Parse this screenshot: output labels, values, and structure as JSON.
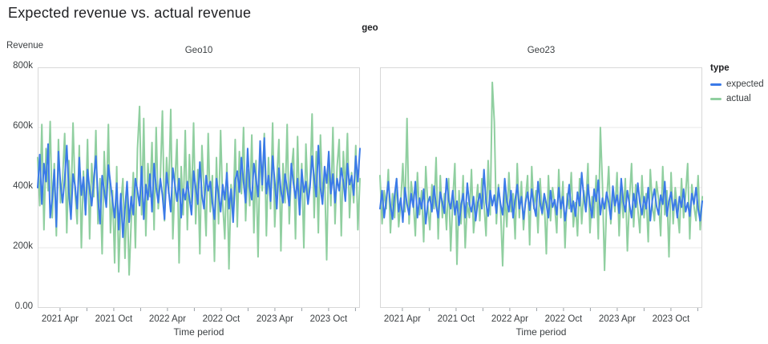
{
  "chart_data": {
    "type": "line",
    "title": "Expected revenue vs. actual revenue",
    "facet_field": "geo",
    "value_unit": "thousands (k)",
    "x_axis": {
      "title": "Time period",
      "span_months": 36,
      "ticks": [
        {
          "m": 2.5,
          "label": "2021 Apr"
        },
        {
          "m": 5.5,
          "label": ""
        },
        {
          "m": 8.5,
          "label": "2021 Oct"
        },
        {
          "m": 11.5,
          "label": ""
        },
        {
          "m": 14.5,
          "label": "2022 Apr"
        },
        {
          "m": 17.5,
          "label": ""
        },
        {
          "m": 20.5,
          "label": "2022 Oct"
        },
        {
          "m": 23.5,
          "label": ""
        },
        {
          "m": 26.5,
          "label": "2023 Apr"
        },
        {
          "m": 29.5,
          "label": ""
        },
        {
          "m": 32.5,
          "label": "2023 Oct"
        },
        {
          "m": 35.5,
          "label": ""
        }
      ]
    },
    "y_axis": {
      "title": "Revenue",
      "lim": [
        0,
        800
      ],
      "ticks": [
        {
          "value": 800,
          "label": "800k"
        },
        {
          "value": 600,
          "label": "600k"
        },
        {
          "value": 400,
          "label": "400k"
        },
        {
          "value": 200,
          "label": "200k"
        },
        {
          "value": 0,
          "label": "0.00"
        }
      ],
      "grid": true
    },
    "legend": {
      "title": "type",
      "position": "right",
      "items": [
        {
          "label": "expected",
          "color": "#3b7ae8"
        },
        {
          "label": "actual",
          "color": "#90cfa0"
        }
      ]
    },
    "style": {
      "border_color": "#d8d8d8",
      "grid_color": "#e7e7e7",
      "tick_color": "#9aa0a6",
      "axis_text_color": "#3c4043",
      "title_color": "#202124"
    },
    "facets": [
      {
        "title": "Geo10",
        "series": [
          {
            "name": "expected",
            "color": "#3b7ae8",
            "values": [
              400,
              510,
              345,
              480,
              420,
              545,
              300,
              365,
              460,
              270,
              520,
              410,
              350,
              430,
              540,
              385,
              295,
              445,
              405,
              330,
              500,
              375,
              435,
              310,
              460,
              395,
              340,
              425,
              505,
              365,
              280,
              440,
              390,
              335,
              475,
              415,
              355,
              300,
              415,
              260,
              380,
              235,
              330,
              420,
              285,
              370,
              310,
              430,
              390,
              340,
              470,
              295,
              410,
              360,
              445,
              320,
              480,
              400,
              350,
              430,
              375,
              295,
              450,
              390,
              320,
              465,
              410,
              355,
              430,
              300,
              395,
              360,
              420,
              365,
              310,
              455,
              400,
              345,
              485,
              375,
              330,
              440,
              390,
              420,
              350,
              295,
              430,
              380,
              320,
              410,
              360,
              450,
              330,
              395,
              285,
              425,
              455,
              385,
              500,
              420,
              350,
              530,
              400,
              360,
              480,
              430,
              370,
              555,
              410,
              565,
              380,
              440,
              355,
              505,
              420,
              330,
              465,
              390,
              350,
              445,
              395,
              340,
              480,
              415,
              365,
              430,
              310,
              460,
              385,
              420,
              345,
              405,
              505,
              430,
              370,
              540,
              400,
              345,
              470,
              415,
              520,
              380,
              445,
              350,
              430,
              390,
              465,
              420,
              355,
              480,
              410,
              440,
              375,
              505,
              420,
              530
            ]
          },
          {
            "name": "actual",
            "color": "#90cfa0",
            "values": [
              500,
              340,
              610,
              260,
              530,
              390,
              620,
              300,
              480,
              240,
              560,
              350,
              430,
              580,
              250,
              490,
              330,
              615,
              380,
              280,
              540,
              200,
              455,
              310,
              560,
              230,
              480,
              370,
              590,
              280,
              430,
              180,
              520,
              340,
              610,
              250,
              390,
              150,
              470,
              120,
              340,
              430,
              165,
              380,
              110,
              290,
              450,
              200,
              530,
              670,
              310,
              630,
              240,
              480,
              370,
              550,
              260,
              600,
              330,
              430,
              655,
              290,
              500,
              380,
              660,
              230,
              420,
              560,
              150,
              470,
              310,
              590,
              260,
              510,
              350,
              615,
              280,
              460,
              180,
              540,
              390,
              240,
              580,
              320,
              440,
              155,
              500,
              280,
              590,
              350,
              230,
              480,
              130,
              410,
              310,
              560,
              270,
              520,
              380,
              600,
              290,
              460,
              340,
              575,
              250,
              490,
              170,
              530,
              390,
              580,
              240,
              500,
              330,
              615,
              270,
              430,
              560,
              190,
              480,
              350,
              610,
              280,
              450,
              530,
              230,
              570,
              310,
              480,
              200,
              545,
              360,
              420,
              645,
              300,
              520,
              250,
              575,
              380,
              440,
              160,
              510,
              340,
              600,
              280,
              470,
              560,
              240,
              520,
              390,
              580,
              300,
              450,
              350,
              540,
              260,
              430
            ]
          }
        ]
      },
      {
        "title": "Geo23",
        "series": [
          {
            "name": "expected",
            "color": "#3b7ae8",
            "values": [
              330,
              390,
              300,
              360,
              420,
              340,
              295,
              375,
              430,
              320,
              365,
              285,
              400,
              345,
              310,
              380,
              335,
              420,
              300,
              365,
              330,
              395,
              280,
              350,
              370,
              320,
              405,
              340,
              300,
              385,
              350,
              315,
              430,
              360,
              330,
              390,
              310,
              355,
              275,
              340,
              380,
              300,
              415,
              345,
              320,
              370,
              290,
              350,
              380,
              330,
              460,
              350,
              305,
              390,
              340,
              375,
              315,
              400,
              345,
              310,
              430,
              355,
              320,
              390,
              300,
              360,
              410,
              330,
              370,
              295,
              350,
              385,
              325,
              395,
              340,
              305,
              420,
              350,
              315,
              380,
              345,
              300,
              390,
              335,
              360,
              310,
              400,
              330,
              370,
              290,
              345,
              410,
              320,
              355,
              305,
              385,
              340,
              450,
              370,
              320,
              410,
              345,
              300,
              395,
              355,
              425,
              310,
              365,
              330,
              385,
              350,
              295,
              405,
              340,
              375,
              315,
              430,
              355,
              320,
              390,
              345,
              300,
              380,
              335,
              415,
              350,
              310,
              370,
              330,
              400,
              290,
              360,
              395,
              340,
              310,
              375,
              345,
              420,
              305,
              355,
              385,
              325,
              360,
              300,
              370,
              335,
              395,
              320,
              350,
              305,
              380,
              345,
              400,
              330,
              290,
              355
            ]
          },
          {
            "name": "actual",
            "color": "#90cfa0",
            "values": [
              440,
              280,
              390,
              330,
              460,
              250,
              380,
              300,
              430,
              270,
              350,
              480,
              320,
              630,
              280,
              420,
              360,
              240,
              450,
              310,
              390,
              220,
              470,
              340,
              260,
              410,
              330,
              500,
              230,
              440,
              300,
              380,
              260,
              430,
              190,
              360,
              480,
              145,
              390,
              280,
              440,
              200,
              350,
              300,
              460,
              250,
              330,
              410,
              290,
              430,
              350,
              240,
              490,
              310,
              750,
              620,
              280,
              410,
              330,
              140,
              390,
              270,
              450,
              320,
              380,
              230,
              480,
              300,
              420,
              260,
              360,
              440,
              210,
              470,
              330,
              390,
              250,
              430,
              310,
              360,
              180,
              440,
              290,
              400,
              340,
              250,
              460,
              300,
              420,
              200,
              380,
              330,
              450,
              270,
              350,
              240,
              430,
              280,
              390,
              340,
              480,
              250,
              370,
              300,
              440,
              230,
              600,
              410,
              125,
              350,
              470,
              280,
              390,
              320,
              450,
              240,
              400,
              300,
              430,
              190,
              360,
              480,
              270,
              410,
              330,
              250,
              440,
              300,
              380,
              220,
              460,
              340,
              290,
              420,
              360,
              240,
              470,
              310,
              390,
              170,
              450,
              280,
              400,
              330,
              250,
              430,
              300,
              380,
              480,
              230,
              410,
              340,
              290,
              440,
              260,
              370
            ]
          }
        ]
      }
    ]
  }
}
